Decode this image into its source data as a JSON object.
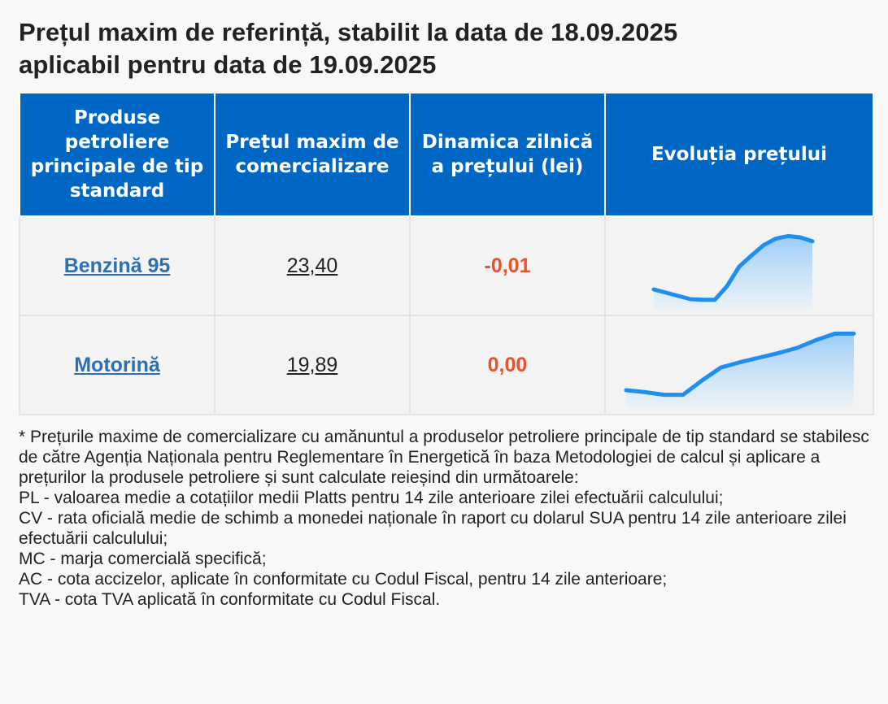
{
  "title_line1": "Prețul maxim de referință, stabilit la data de 18.09.2025",
  "title_line2": "aplicabil pentru data de 19.09.2025",
  "table": {
    "headers": [
      "Produse petroliere principale de tip standard",
      "Prețul maxim de comercializare",
      "Dinamica zilnică a prețului (lei)",
      "Evoluția prețului"
    ],
    "rows": [
      {
        "product": "Benzină 95",
        "price": "23,40",
        "dynamic": "-0,01"
      },
      {
        "product": "Motorină",
        "price": "19,89",
        "dynamic": "0,00"
      }
    ]
  },
  "colors": {
    "header_bg": "#0067c5",
    "link": "#2d6fb3",
    "dynamic": "#e8532b",
    "spark_line": "#1e8ff0"
  },
  "chart_data": [
    {
      "type": "area",
      "series": [
        {
          "values": [
            0.1,
            0.05,
            0.0,
            -0.05,
            -0.06,
            -0.06,
            0.15,
            0.45,
            0.62,
            0.78,
            0.88,
            0.92,
            0.9,
            0.84
          ]
        }
      ]
    },
    {
      "type": "area",
      "series": [
        {
          "values": [
            0.05,
            0.02,
            -0.02,
            -0.02,
            0.2,
            0.4,
            0.48,
            0.55,
            0.62,
            0.7,
            0.82,
            0.92,
            0.92
          ]
        }
      ]
    }
  ],
  "notes": [
    "* Prețurile maxime de comercializare cu amănuntul a produselor petroliere principale de tip standard se stabilesc de către Agenția Naționala pentru Reglementare în Energetică în baza Metodologiei de calcul și aplicare a prețurilor la produsele petroliere și sunt calculate reieșind din următoarele:",
    "PL - valoarea medie a cotațiilor medii Platts pentru 14 zile anterioare zilei efectuării calculului;",
    "CV - rata oficială medie de schimb a monedei naționale în raport cu dolarul SUA pentru 14 zile anterioare zilei efectuării calculului;",
    "MC - marja comercială specifică;",
    "AC - cota accizelor, aplicate în conformitate cu Codul Fiscal, pentru 14 zile anterioare;",
    "TVA - cota TVA aplicată în conformitate cu Codul Fiscal."
  ]
}
